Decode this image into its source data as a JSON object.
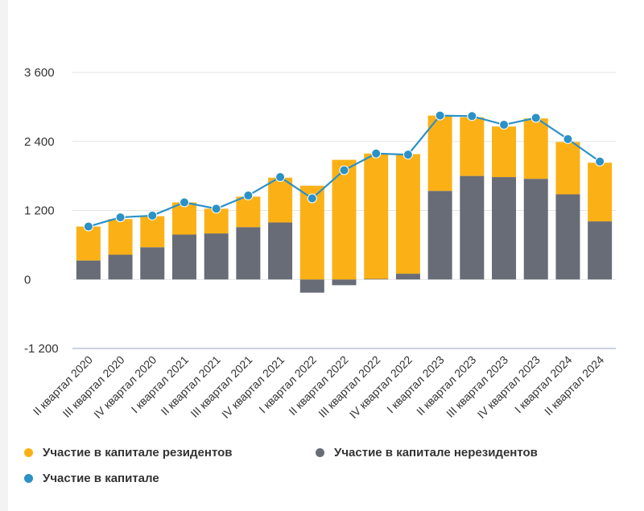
{
  "chart_data": {
    "type": "bar",
    "stacked": true,
    "categories": [
      "II квартал 2020",
      "III квартал 2020",
      "IV квартал 2020",
      "I квартал 2021",
      "II квартал 2021",
      "III квартал 2021",
      "IV квартал 2021",
      "I квартал 2022",
      "II квартал 2022",
      "III квартал 2022",
      "IV квартал 2022",
      "I квартал 2023",
      "II квартал 2023",
      "III квартал 2023",
      "IV квартал 2023",
      "I квартал 2024",
      "II квартал 2024"
    ],
    "series": [
      {
        "name": "Участие в капитале резидентов",
        "kind": "bar",
        "color": "#fbb116",
        "values": [
          590,
          620,
          540,
          560,
          430,
          530,
          780,
          1630,
          2080,
          2180,
          2080,
          1310,
          1020,
          880,
          1050,
          910,
          1020
        ]
      },
      {
        "name": "Участие в капитале нерезидентов",
        "kind": "bar",
        "color": "#686c76",
        "values": [
          330,
          430,
          560,
          780,
          800,
          910,
          990,
          -230,
          -100,
          10,
          100,
          1540,
          1800,
          1780,
          1750,
          1480,
          1010
        ]
      },
      {
        "name": "Участие в капитале",
        "kind": "line",
        "color": "#2b91c7",
        "values": [
          920,
          1080,
          1110,
          1340,
          1230,
          1460,
          1780,
          1410,
          1900,
          2190,
          2170,
          2850,
          2840,
          2690,
          2810,
          2440,
          2050
        ]
      }
    ],
    "yticks": [
      -1200,
      0,
      1200,
      2400,
      3600
    ],
    "ytick_labels": [
      "-1 200",
      "0",
      "1 200",
      "2 400",
      "3 600"
    ],
    "ylim": [
      -1200,
      3600
    ],
    "grid": true,
    "legend_position": "bottom"
  }
}
